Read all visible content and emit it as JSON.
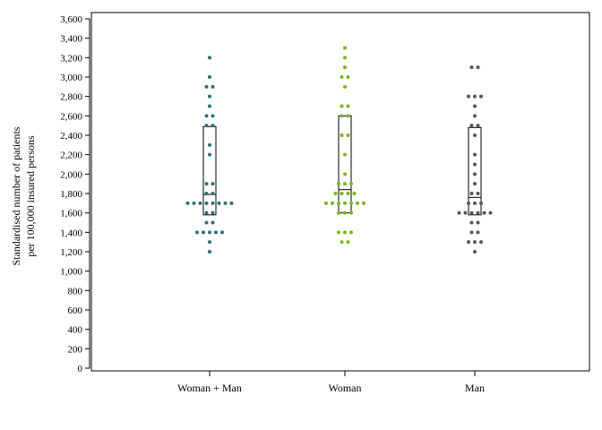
{
  "chart_data": {
    "type": "scatter",
    "subtype": "dot-plot with box (median and interquartile range)",
    "title": "",
    "xlabel": "",
    "ylabel": [
      "Standardised number of patients",
      "per 100,000 insured persons"
    ],
    "ylim": [
      0,
      3600
    ],
    "ytick_step": 200,
    "grid": false,
    "legend": "none",
    "categories": [
      "Woman + Man",
      "Woman",
      "Man"
    ],
    "series": [
      {
        "category": "Woman + Man",
        "color": "#2e6e6e",
        "values": [
          3200,
          3000,
          2900,
          2900,
          2800,
          2700,
          2600,
          2600,
          2500,
          2500,
          2300,
          2200,
          1900,
          1900,
          1800,
          1800,
          1700,
          1700,
          1700,
          1700,
          1700,
          1700,
          1700,
          1700,
          1600,
          1600,
          1500,
          1500,
          1400,
          1400,
          1400,
          1400,
          1400,
          1300,
          1200
        ],
        "box": {
          "q1": 1580,
          "median": 1790,
          "q3": 2490
        }
      },
      {
        "category": "Woman",
        "color": "#7ab51d",
        "values": [
          3300,
          3200,
          3100,
          3000,
          3000,
          2900,
          2700,
          2700,
          2600,
          2600,
          2400,
          2400,
          2200,
          2000,
          1900,
          1900,
          1900,
          1800,
          1800,
          1800,
          1800,
          1700,
          1700,
          1700,
          1700,
          1700,
          1700,
          1700,
          1600,
          1600,
          1600,
          1400,
          1400,
          1400,
          1300,
          1300
        ],
        "box": {
          "q1": 1600,
          "median": 1840,
          "q3": 2600
        }
      },
      {
        "category": "Man",
        "color": "#555555",
        "values": [
          3100,
          3100,
          2800,
          2800,
          2800,
          2700,
          2600,
          2500,
          2500,
          2400,
          2200,
          2100,
          2000,
          1900,
          1800,
          1800,
          1700,
          1700,
          1700,
          1600,
          1600,
          1600,
          1600,
          1600,
          1600,
          1500,
          1500,
          1400,
          1400,
          1300,
          1300,
          1300,
          1200
        ],
        "box": {
          "q1": 1580,
          "median": 1760,
          "q3": 2480
        }
      }
    ]
  }
}
